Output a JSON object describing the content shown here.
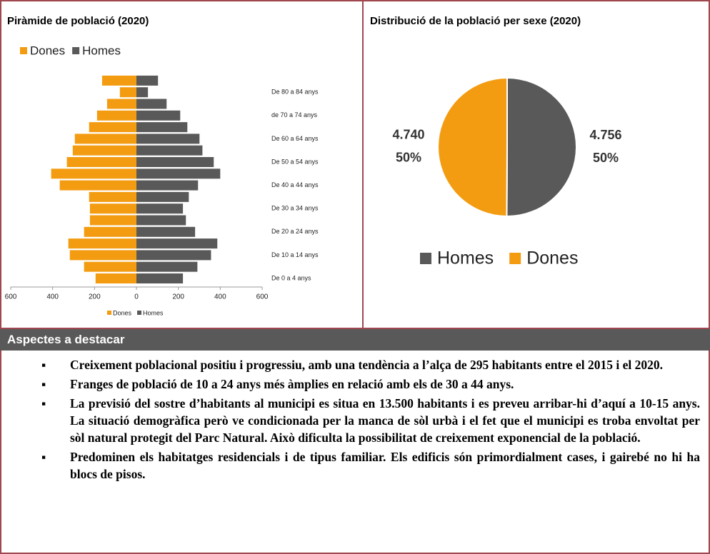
{
  "chart_data": [
    {
      "type": "pyramid",
      "title": "Piràmide de població (2020)",
      "categories": [
        "De 0 a 4 anys",
        null,
        "De 10 a 14 anys",
        null,
        "De 20 a 24 anys",
        null,
        "De 30 a 34 anys",
        null,
        "De 40 a 44 anys",
        null,
        "De 50 a 54 anys",
        null,
        "De 60 a 64 anys",
        null,
        "de 70 a 74 anys",
        null,
        "De 80 a 84 anys",
        null
      ],
      "series": [
        {
          "name": "Dones",
          "color": "#f39c12",
          "values": [
            -195,
            -250,
            -318,
            -325,
            -250,
            -222,
            -222,
            -226,
            -366,
            -407,
            -332,
            -304,
            -294,
            -226,
            -188,
            -140,
            -79,
            -164
          ]
        },
        {
          "name": "Homes",
          "color": "#595959",
          "values": [
            222,
            291,
            356,
            386,
            280,
            236,
            222,
            250,
            294,
            400,
            369,
            315,
            301,
            243,
            209,
            144,
            55,
            103
          ]
        }
      ],
      "xlim": [
        -600,
        600
      ],
      "xticks": [
        {
          "value": -600,
          "label": "600"
        },
        {
          "value": -400,
          "label": "400"
        },
        {
          "value": -200,
          "label": "200"
        },
        0,
        200,
        400,
        600
      ]
    },
    {
      "type": "pie",
      "title": "Distribució de la població per sexe (2020)",
      "categories": [
        "Homes",
        "Dones"
      ],
      "values": [
        4756,
        4740
      ],
      "value_labels": [
        "4.756",
        "4.740"
      ],
      "percent_labels": [
        "50%",
        "50%"
      ],
      "colors": [
        "#595959",
        "#f39c12"
      ]
    }
  ],
  "section": {
    "title": "Aspectes a destacar",
    "bullets": [
      "Creixement poblacional positiu i progressiu, amb una tendència a l’alça de 295 habitants entre el 2015 i el 2020.",
      "Franges de població de 10 a 24 anys més àmplies en relació amb els de 30 a 44 anys.",
      "La previsió del sostre d’habitants al municipi es situa en 13.500 habitants i es preveu arribar-hi d’aquí a 10-15 anys. La situació demogràfica però ve condicionada per la manca de sòl urbà i el fet que el municipi es troba envoltat per sòl natural protegit del Parc Natural. Això dificulta la possibilitat de creixement exponencial de la població.",
      "Predominen els habitatges residencials i de tipus familiar. Els edificis són primordialment cases, i gairebé no hi ha blocs de pisos."
    ]
  }
}
